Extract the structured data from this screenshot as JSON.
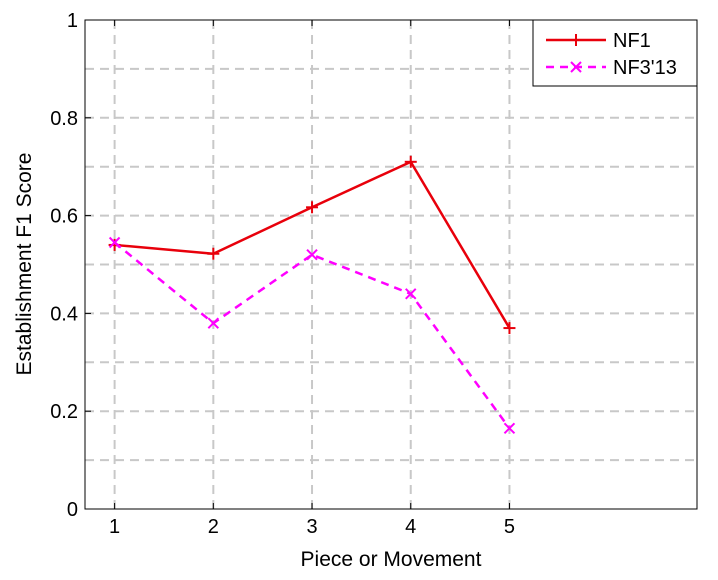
{
  "chart_data": {
    "type": "line",
    "title": "",
    "xlabel": "Piece or Movement",
    "ylabel": "Establishment F1 Score",
    "x": [
      1,
      2,
      3,
      4,
      5
    ],
    "xlim": [
      0.7,
      6.9
    ],
    "ylim": [
      0,
      1
    ],
    "x_ticks": [
      "1",
      "2",
      "3",
      "4",
      "5"
    ],
    "y_ticks": [
      "0",
      "0.2",
      "0.4",
      "0.6",
      "0.8",
      "1"
    ],
    "grid": true,
    "legend_position": "top-right",
    "series": [
      {
        "name": "NF1",
        "values": [
          0.54,
          0.522,
          0.617,
          0.71,
          0.37
        ],
        "color": "#e8000b",
        "line_style": "solid",
        "marker": "plus"
      },
      {
        "name": "NF3'13",
        "values": [
          0.545,
          0.38,
          0.52,
          0.44,
          0.165
        ],
        "color": "#ff00ff",
        "line_style": "dashed",
        "marker": "x"
      }
    ]
  }
}
